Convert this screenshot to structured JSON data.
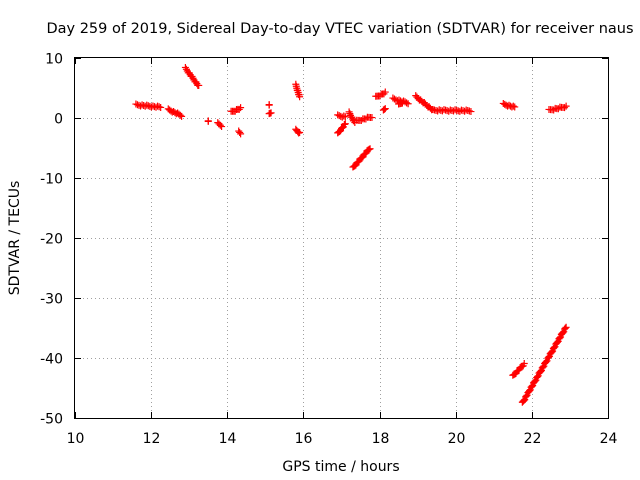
{
  "chart_data": {
    "type": "scatter",
    "title": "Day 259 of 2019, Sidereal Day-to-day VTEC variation (SDTVAR) for receiver naus",
    "xlabel": "GPS time / hours",
    "ylabel": "SDTVAR / TECUs",
    "xlim": [
      10,
      24
    ],
    "ylim": [
      -50,
      10
    ],
    "xticks": [
      10,
      12,
      14,
      16,
      18,
      20,
      22,
      24
    ],
    "yticks": [
      10,
      0,
      -10,
      -20,
      -30,
      -40,
      -50
    ],
    "grid": true,
    "marker": "+",
    "color": "#ff0000",
    "segments": [
      {
        "x0": 11.6,
        "y0": 2.2,
        "x1": 12.25,
        "y1": 1.8
      },
      {
        "x0": 12.45,
        "y0": 1.4,
        "x1": 12.8,
        "y1": 0.4
      },
      {
        "x0": 12.9,
        "y0": 8.3,
        "x1": 13.25,
        "y1": 5.3
      },
      {
        "x0": 13.5,
        "y0": -0.6,
        "x1": 13.5,
        "y1": -0.6
      },
      {
        "x0": 13.75,
        "y0": -0.9,
        "x1": 13.85,
        "y1": -1.3
      },
      {
        "x0": 14.1,
        "y0": 1.0,
        "x1": 14.35,
        "y1": 1.6
      },
      {
        "x0": 14.3,
        "y0": -2.3,
        "x1": 14.35,
        "y1": -2.6
      },
      {
        "x0": 15.1,
        "y0": 2.1,
        "x1": 15.1,
        "y1": 2.1
      },
      {
        "x0": 15.1,
        "y0": 0.6,
        "x1": 15.15,
        "y1": 0.9
      },
      {
        "x0": 15.8,
        "y0": 5.5,
        "x1": 15.9,
        "y1": 3.5
      },
      {
        "x0": 15.8,
        "y0": -2.0,
        "x1": 15.9,
        "y1": -2.5
      },
      {
        "x0": 16.9,
        "y0": 0.4,
        "x1": 17.1,
        "y1": 0.2
      },
      {
        "x0": 16.9,
        "y0": -2.6,
        "x1": 17.1,
        "y1": -1.0
      },
      {
        "x0": 17.2,
        "y0": 0.9,
        "x1": 17.35,
        "y1": -0.8
      },
      {
        "x0": 17.3,
        "y0": -8.3,
        "x1": 17.75,
        "y1": -5.0
      },
      {
        "x0": 17.4,
        "y0": -0.5,
        "x1": 17.8,
        "y1": 0.2
      },
      {
        "x0": 17.9,
        "y0": 3.5,
        "x1": 18.15,
        "y1": 4.2
      },
      {
        "x0": 18.1,
        "y0": 1.2,
        "x1": 18.15,
        "y1": 1.6
      },
      {
        "x0": 18.35,
        "y0": 3.2,
        "x1": 18.75,
        "y1": 2.5
      },
      {
        "x0": 18.5,
        "y0": 2.2,
        "x1": 18.6,
        "y1": 2.6
      },
      {
        "x0": 18.95,
        "y0": 3.6,
        "x1": 19.4,
        "y1": 1.3
      },
      {
        "x0": 19.4,
        "y0": 1.3,
        "x1": 20.4,
        "y1": 1.2
      },
      {
        "x0": 21.25,
        "y0": 2.3,
        "x1": 21.55,
        "y1": 1.8
      },
      {
        "x0": 21.5,
        "y0": -43.0,
        "x1": 21.8,
        "y1": -41.0
      },
      {
        "x0": 21.75,
        "y0": -47.5,
        "x1": 22.9,
        "y1": -34.8
      },
      {
        "x0": 22.45,
        "y0": 1.3,
        "x1": 22.9,
        "y1": 1.9
      }
    ]
  }
}
